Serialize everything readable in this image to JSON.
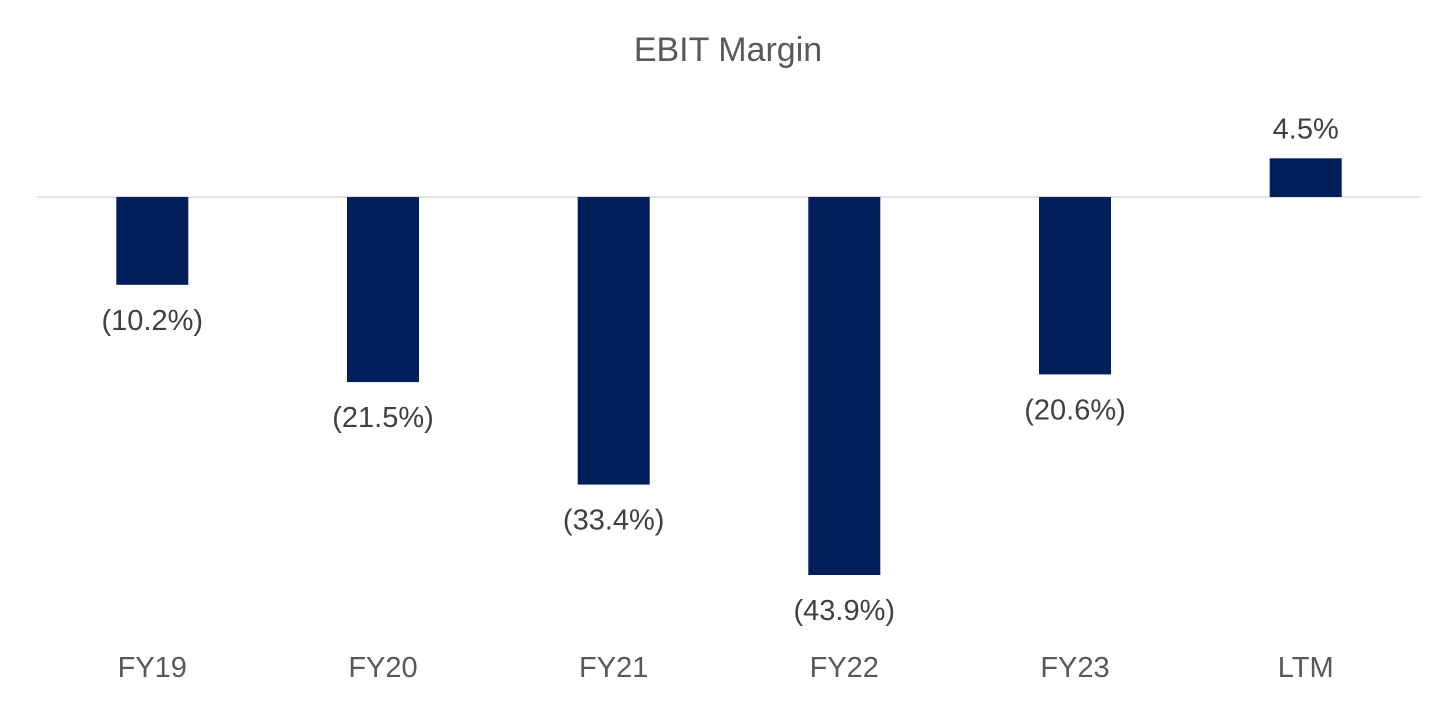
{
  "chart_data": {
    "type": "bar",
    "title": "EBIT Margin",
    "xlabel": "",
    "ylabel": "",
    "categories": [
      "FY19",
      "FY20",
      "FY21",
      "FY22",
      "FY23",
      "LTM"
    ],
    "values": [
      -10.2,
      -21.5,
      -33.4,
      -43.9,
      -20.6,
      4.5
    ],
    "data_labels": [
      "(10.2%)",
      "(21.5%)",
      "(33.4%)",
      "(43.9%)",
      "(20.6%)",
      "4.5%"
    ],
    "unit": "%",
    "ylim": [
      -43.9,
      4.5
    ],
    "grid": false,
    "legend": "none",
    "colors": {
      "bar": "#001f5b",
      "axis": "#d9d9d9",
      "title": "#595959",
      "label": "#404040",
      "category": "#595959"
    }
  }
}
